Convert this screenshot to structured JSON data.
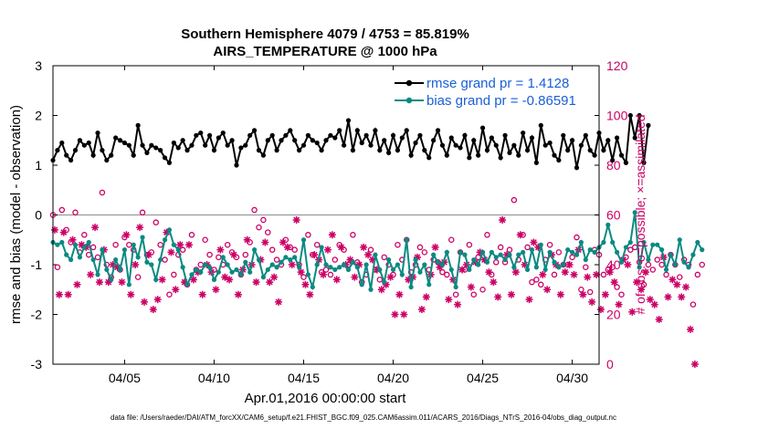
{
  "chart_data": {
    "type": "line",
    "title": "Southern Hemisphere 4079 / 4753 = 85.819%",
    "subtitle": "AIRS_TEMPERATURE @ 1000 hPa",
    "xlabel": "Apr.01,2016 00:00:00 start",
    "ylabel": "rmse and bias (model - observation)",
    "ylabel_right": "# of obs: o=possible; ×=assimilated",
    "ylim": [
      -3,
      3
    ],
    "ylim_right": [
      0,
      120
    ],
    "xlim": [
      1,
      31.5
    ],
    "y_ticks": [
      "-3",
      "-2",
      "-1",
      "0",
      "1",
      "2",
      "3"
    ],
    "y_right_ticks": [
      "0",
      "20",
      "40",
      "60",
      "80",
      "100",
      "120"
    ],
    "x_ticks": [
      {
        "x": 5,
        "label": "04/05"
      },
      {
        "x": 10,
        "label": "04/10"
      },
      {
        "x": 15,
        "label": "04/15"
      },
      {
        "x": 20,
        "label": "04/20"
      },
      {
        "x": 25,
        "label": "04/25"
      },
      {
        "x": 30,
        "label": "04/30"
      }
    ],
    "x_start": 1.0,
    "x_step": 0.25,
    "series": [
      {
        "name": "rmse",
        "legend": "rmse grand pr = 1.4128",
        "color": "#000000",
        "axis": "left",
        "values": [
          1.1,
          1.3,
          1.45,
          1.2,
          1.1,
          1.3,
          1.5,
          1.4,
          1.45,
          1.2,
          1.65,
          1.3,
          1.1,
          1.2,
          1.55,
          1.5,
          1.45,
          1.4,
          1.2,
          1.8,
          1.4,
          1.25,
          1.4,
          1.35,
          1.3,
          1.15,
          1.05,
          1.45,
          1.35,
          1.5,
          1.3,
          1.4,
          1.6,
          1.65,
          1.4,
          1.6,
          1.3,
          1.55,
          1.65,
          1.4,
          1.5,
          1.0,
          1.35,
          1.4,
          1.6,
          1.7,
          1.3,
          1.2,
          1.5,
          1.6,
          1.3,
          1.5,
          1.6,
          1.7,
          1.5,
          1.3,
          1.4,
          1.6,
          1.5,
          1.45,
          1.3,
          1.5,
          1.6,
          1.55,
          1.7,
          1.4,
          1.9,
          1.3,
          1.7,
          1.45,
          1.6,
          1.4,
          1.7,
          1.3,
          1.5,
          1.25,
          1.6,
          1.3,
          1.55,
          1.7,
          1.2,
          1.45,
          1.6,
          1.3,
          1.15,
          1.5,
          1.7,
          1.4,
          1.2,
          1.55,
          1.4,
          1.35,
          1.6,
          1.15,
          1.5,
          1.2,
          1.75,
          1.3,
          1.55,
          1.4,
          1.15,
          1.6,
          1.25,
          1.4,
          1.2,
          1.65,
          1.3,
          1.55,
          1.05,
          1.8,
          1.4,
          1.45,
          1.2,
          1.1,
          1.6,
          1.3,
          1.5,
          0.95,
          1.4,
          1.6,
          1.3,
          1.2,
          1.65,
          1.3,
          1.5,
          1.1,
          1.55,
          1.2,
          1.05,
          2.0,
          1.55,
          2.0,
          1.05,
          1.8
        ]
      },
      {
        "name": "bias",
        "legend": "bias grand pr = -0.86591",
        "color": "#0a8a82",
        "axis": "left",
        "values": [
          -0.55,
          -0.6,
          -0.55,
          -0.8,
          -0.9,
          -0.6,
          -0.85,
          -0.65,
          -0.55,
          -0.9,
          -1.2,
          -0.7,
          -1.1,
          -1.3,
          -0.9,
          -1.1,
          -0.7,
          -1.4,
          -0.6,
          -0.85,
          -0.45,
          -0.95,
          -1.0,
          -1.3,
          -0.9,
          -0.5,
          -0.3,
          -0.6,
          -0.7,
          -1.05,
          -1.4,
          -1.2,
          -1.1,
          -1.15,
          -1.0,
          -1.05,
          -1.3,
          -1.15,
          -0.85,
          -1.0,
          -1.15,
          -1.1,
          -1.2,
          -0.95,
          -1.15,
          -0.7,
          -0.9,
          -1.25,
          -1.1,
          -1.0,
          -1.05,
          -0.95,
          -0.85,
          -0.9,
          -0.85,
          -1.05,
          -0.5,
          -1.2,
          -1.45,
          -1.0,
          -0.65,
          -1.0,
          -1.05,
          -1.1,
          -1.05,
          -1.0,
          -1.1,
          -0.95,
          -1.05,
          -1.4,
          -1.0,
          -1.5,
          -0.8,
          -1.1,
          -1.35,
          -0.9,
          -1.1,
          -1.0,
          -1.2,
          -0.5,
          -1.45,
          -0.9,
          -1.15,
          -1.0,
          -1.4,
          -0.8,
          -0.95,
          -1.0,
          -0.75,
          -1.1,
          -1.45,
          -0.75,
          -0.8,
          -1.1,
          -0.9,
          -1.0,
          -0.75,
          -0.95,
          -0.75,
          -0.85,
          -0.8,
          -0.9,
          -0.8,
          -1.05,
          -0.8,
          -0.75,
          -1.1,
          -0.7,
          -1.05,
          -0.6,
          -1.1,
          -0.75,
          -0.95,
          -1.05,
          -1.0,
          -0.7,
          -0.75,
          -0.8,
          -0.55,
          -0.9,
          -0.7,
          -0.75,
          -0.65,
          -0.55,
          -0.2,
          -0.55,
          -0.75,
          -0.95,
          -0.65,
          -0.55,
          0.05,
          -1.05,
          -0.55,
          -0.9,
          -0.6,
          -0.6,
          -0.7,
          -1.1,
          -0.8,
          -1.0,
          -0.5,
          -0.95,
          -1.05,
          -0.8,
          -0.55,
          -0.7
        ]
      },
      {
        "name": "possible",
        "marker": "o",
        "color": "#cc0066",
        "axis": "right",
        "values": [
          60,
          39,
          62,
          54,
          49,
          61,
          45,
          52,
          44,
          47,
          43,
          69,
          40,
          35,
          48,
          38,
          51,
          48,
          46,
          35,
          61,
          44,
          45,
          57,
          48,
          42,
          28,
          36,
          44,
          46,
          32,
          52,
          38,
          40,
          50,
          44,
          38,
          43,
          40,
          48,
          45,
          43,
          36,
          44,
          49,
          62,
          55,
          58,
          53,
          46,
          42,
          40,
          50,
          47,
          46,
          40,
          35,
          52,
          44,
          48,
          37,
          38,
          36,
          42,
          48,
          46,
          40,
          52,
          41,
          33,
          36,
          46,
          38,
          34,
          43,
          40,
          36,
          48,
          42,
          50,
          37,
          40,
          47,
          45,
          38,
          42,
          41,
          37,
          36,
          50,
          28,
          45,
          38,
          48,
          28,
          43,
          30,
          52,
          36,
          41,
          47,
          41,
          46,
          66,
          42,
          52,
          47,
          33,
          34,
          32,
          42,
          48,
          36,
          45,
          40,
          40,
          43,
          51,
          30,
          39,
          29,
          46,
          44,
          36,
          38,
          39,
          31,
          28,
          43,
          46,
          47,
          41,
          32,
          40,
          38,
          42,
          40,
          36,
          44,
          40,
          35,
          42,
          40,
          24,
          36,
          40
        ]
      },
      {
        "name": "assimilated",
        "marker": "*",
        "color": "#cc0066",
        "axis": "right",
        "values": [
          54,
          28,
          53,
          28,
          50,
          32,
          48,
          47,
          36,
          55,
          33,
          46,
          33,
          40,
          39,
          33,
          52,
          28,
          40,
          55,
          25,
          44,
          22,
          26,
          34,
          53,
          45,
          30,
          48,
          33,
          48,
          34,
          37,
          28,
          40,
          37,
          30,
          46,
          35,
          34,
          44,
          28,
          38,
          50,
          40,
          33,
          42,
          49,
          33,
          35,
          25,
          49,
          47,
          40,
          58,
          37,
          32,
          28,
          44,
          42,
          36,
          46,
          52,
          34,
          47,
          40,
          42,
          35,
          40,
          47,
          44,
          42,
          38,
          30,
          32,
          35,
          20,
          28,
          20,
          34,
          35,
          43,
          22,
          27,
          36,
          47,
          39,
          41,
          26,
          34,
          24,
          38,
          40,
          31,
          41,
          45,
          42,
          37,
          33,
          27,
          58,
          44,
          28,
          37,
          52,
          40,
          26,
          49,
          47,
          36,
          30,
          44,
          40,
          28,
          37,
          40,
          36,
          46,
          28,
          35,
          25,
          36,
          22,
          28,
          37,
          33,
          24,
          42,
          40,
          21,
          33,
          30,
          37,
          26,
          24,
          18,
          43,
          27,
          34,
          32,
          27,
          31,
          14,
          0
        ]
      }
    ],
    "footnote": "data file: /Users/raeder/DAI/ATM_forcXX/CAM6_setup/f.e21.FHIST_BGC.f09_025.CAM6assim.011/ACARS_2016/Diags_NTrS_2016-04/obs_diag_output.nc"
  }
}
